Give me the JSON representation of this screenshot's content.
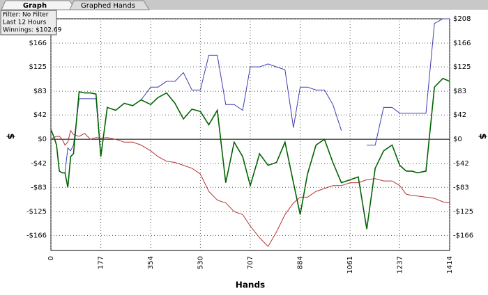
{
  "tabs": [
    "Graph",
    "Graphed Hands"
  ],
  "info": [
    "Filter: No Filter",
    "Last  12 Hours",
    "Winnings: $102.69"
  ],
  "chart_data": {
    "type": "line",
    "x_label": "Hands",
    "y_label": "$",
    "y2_label": "$",
    "x": [
      0,
      10,
      20,
      30,
      40,
      50,
      60,
      70,
      80,
      100,
      120,
      140,
      160,
      177,
      200,
      230,
      260,
      290,
      320,
      354,
      380,
      410,
      440,
      470,
      500,
      530,
      560,
      590,
      620,
      650,
      680,
      707,
      740,
      770,
      800,
      830,
      860,
      884,
      910,
      940,
      970,
      1000,
      1030,
      1061,
      1090,
      1120,
      1150,
      1180,
      1210,
      1237,
      1260,
      1280,
      1300,
      1330,
      1360,
      1390,
      1414
    ],
    "series": [
      {
        "color": "#3c3cb4",
        "values": [
          17,
          5,
          -10,
          -55,
          -58,
          -58,
          -15,
          -20,
          -10,
          70,
          70,
          70,
          70,
          -30,
          55,
          50,
          62,
          58,
          68,
          90,
          90,
          100,
          100,
          115,
          85,
          85,
          145,
          145,
          60,
          60,
          50,
          125,
          125,
          130,
          125,
          120,
          20,
          90,
          90,
          85,
          85,
          60,
          15,
          null,
          null,
          -10,
          -10,
          55,
          55,
          45,
          45,
          45,
          45,
          45,
          200,
          208,
          208
        ]
      },
      {
        "color": "#b43232",
        "values": [
          0,
          3,
          5,
          5,
          0,
          -10,
          -5,
          15,
          8,
          5,
          10,
          0,
          3,
          2,
          3,
          0,
          -5,
          -5,
          -10,
          -20,
          -30,
          -38,
          -40,
          -45,
          -50,
          -60,
          -90,
          -105,
          -110,
          -125,
          -130,
          -150,
          -170,
          -185,
          -160,
          -130,
          -110,
          -100,
          -100,
          -90,
          -85,
          -80,
          -80,
          -75,
          -75,
          -70,
          -68,
          -72,
          -72,
          -80,
          -95,
          -97,
          -98,
          -100,
          -102,
          -108,
          -110
        ]
      },
      {
        "color": "#006400",
        "values": [
          17,
          5,
          -10,
          -55,
          -58,
          -58,
          -83,
          -30,
          -25,
          82,
          80,
          80,
          78,
          -30,
          55,
          50,
          62,
          58,
          68,
          60,
          72,
          80,
          62,
          35,
          52,
          48,
          25,
          50,
          -75,
          -5,
          -30,
          -80,
          -25,
          -45,
          -40,
          -5,
          -75,
          -130,
          -60,
          -10,
          0,
          -40,
          -75,
          -70,
          -65,
          -155,
          -50,
          -20,
          -10,
          -45,
          -55,
          -55,
          -58,
          -55,
          90,
          105,
          100
        ]
      }
    ],
    "xlim": [
      0,
      1414
    ],
    "xticks": [
      0,
      177,
      354,
      530,
      707,
      884,
      1061,
      1237,
      1414
    ],
    "ylim": [
      -192,
      208
    ],
    "yticks": [
      {
        "value": 208,
        "label": "$208"
      },
      {
        "value": 166,
        "label": "$166"
      },
      {
        "value": 125,
        "label": "$125"
      },
      {
        "value": 83,
        "label": "$83"
      },
      {
        "value": 42,
        "label": "$42"
      },
      {
        "value": 0,
        "label": "$0"
      },
      {
        "value": -42,
        "label": "-$42"
      },
      {
        "value": -83,
        "label": "-$83"
      },
      {
        "value": -125,
        "label": "-$125"
      },
      {
        "value": -166,
        "label": "-$166"
      }
    ],
    "grid": true
  }
}
